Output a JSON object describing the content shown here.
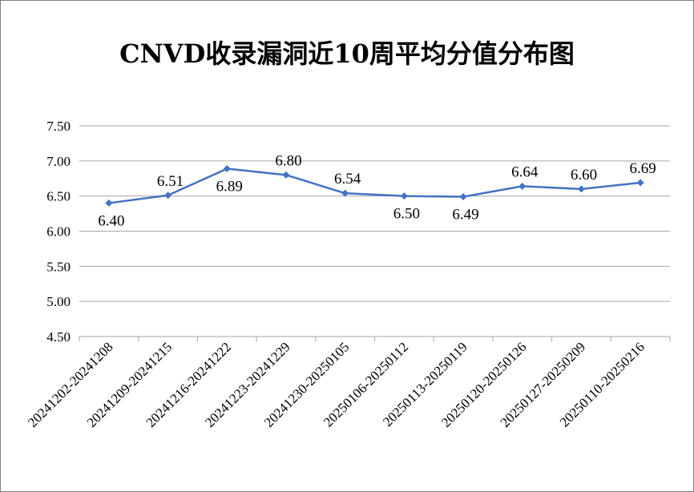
{
  "chart_data": {
    "type": "line",
    "title": "CNVD收录漏洞近10周平均分值分布图",
    "xlabel": "",
    "ylabel": "",
    "categories": [
      "20241202-20241208",
      "20241209-20241215",
      "20241216-20241222",
      "20241223-20241229",
      "20241230-20250105",
      "20250106-20250112",
      "20250113-20250119",
      "20250120-20250126",
      "20250127-20250209",
      "20250110-20250216"
    ],
    "series": [
      {
        "name": "",
        "values": [
          6.4,
          6.51,
          6.89,
          6.8,
          6.54,
          6.5,
          6.49,
          6.64,
          6.6,
          6.69
        ]
      }
    ],
    "data_labels": [
      "6.40",
      "6.51",
      "6.89",
      "6.80",
      "6.54",
      "6.50",
      "6.49",
      "6.64",
      "6.60",
      "6.69"
    ],
    "label_positions": [
      "below",
      "above",
      "below",
      "above",
      "above",
      "below",
      "below",
      "above",
      "above",
      "above"
    ],
    "ylim": [
      4.5,
      7.5
    ],
    "yticks": [
      "4.50",
      "5.00",
      "5.50",
      "6.00",
      "6.50",
      "7.00",
      "7.50"
    ],
    "grid": true,
    "legend": "none",
    "line_color": "#4472c4",
    "grid_color": "#a6a6a6"
  }
}
